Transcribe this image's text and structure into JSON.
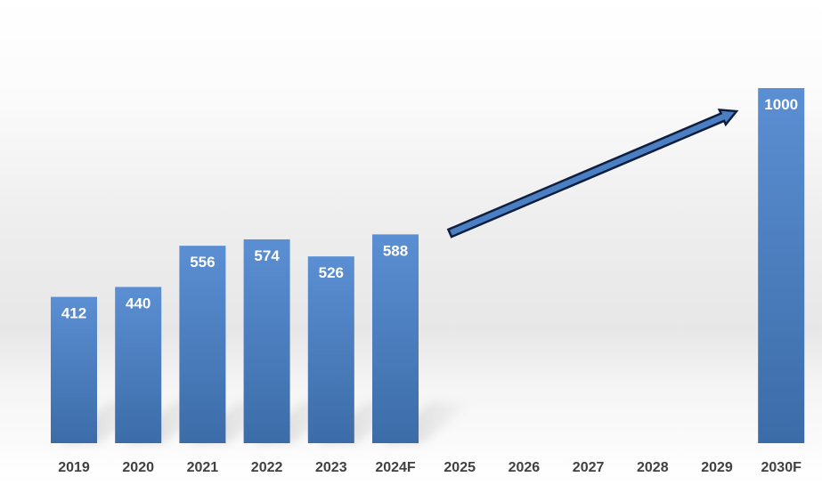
{
  "chart_data": {
    "type": "bar",
    "title": "",
    "xlabel": "",
    "ylabel": "",
    "categories": [
      "2019",
      "2020",
      "2021",
      "2022",
      "2023",
      "2024F",
      "2025",
      "2026",
      "2027",
      "2028",
      "2029",
      "2030F"
    ],
    "values": [
      412,
      440,
      556,
      574,
      526,
      588,
      null,
      null,
      null,
      null,
      null,
      1000
    ],
    "data_labels": [
      "412",
      "440",
      "556",
      "574",
      "526",
      "588",
      "",
      "",
      "",
      "",
      "",
      "1000"
    ],
    "ylim": [
      0,
      1050
    ],
    "grid": false,
    "legend": "none",
    "annotations": [
      {
        "type": "growth-arrow",
        "from_category": "2025",
        "to_category": "2029"
      }
    ],
    "colors": {
      "bar_top": "#5b8fd3",
      "bar_bottom": "#3c6ca8",
      "arrow_fill": "#4a7fc4",
      "arrow_stroke": "#0f1e3d",
      "tick_label": "#404040",
      "value_label": "#ffffff"
    }
  }
}
